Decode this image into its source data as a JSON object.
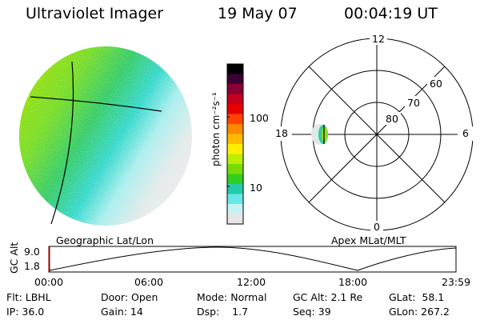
{
  "header": {
    "instrument": "Ultraviolet Imager",
    "date": "19 May 07",
    "time": "00:04:19 UT"
  },
  "colorbar": {
    "unit_label": "photon cm⁻²s⁻¹",
    "tick_labels": [
      "100",
      "10"
    ],
    "colors": [
      "#000000",
      "#3b0033",
      "#8a0033",
      "#c4001f",
      "#e80000",
      "#ff4400",
      "#ff8800",
      "#ffbb00",
      "#ffee00",
      "#bbee00",
      "#77dd00",
      "#33cc22",
      "#22ccaa",
      "#66e8e8",
      "#c4f2f2",
      "#e6e6e6"
    ]
  },
  "polar_plot": {
    "labels": {
      "mlt_12": "12",
      "mlt_18": "18",
      "mlt_6": "6",
      "mlt_0": "0",
      "lat_60": "60",
      "lat_70": "70",
      "lat_80": "80"
    },
    "caption": "Apex MLat/MLT"
  },
  "earth_view": {
    "caption": "Geographic Lat/Lon"
  },
  "altitude_track": {
    "axis_label": "GC Alt",
    "y_ticks": [
      "9.0",
      "1.8"
    ],
    "x_ticks": [
      "00:00",
      "06:00",
      "12:00",
      "18:00",
      "23:59"
    ]
  },
  "info": {
    "filter": "Flt: LBHL",
    "ip": "IP: 36.0",
    "door": "Door: Open",
    "gain": "Gain: 14",
    "mode": "Mode: Normal",
    "dsp": "Dsp:    1.7",
    "gc_alt": "GC Alt: 2.1 Re",
    "seq": "Seq: 39",
    "glat": "GLat:  58.1",
    "glon": "GLon: 267.2"
  }
}
